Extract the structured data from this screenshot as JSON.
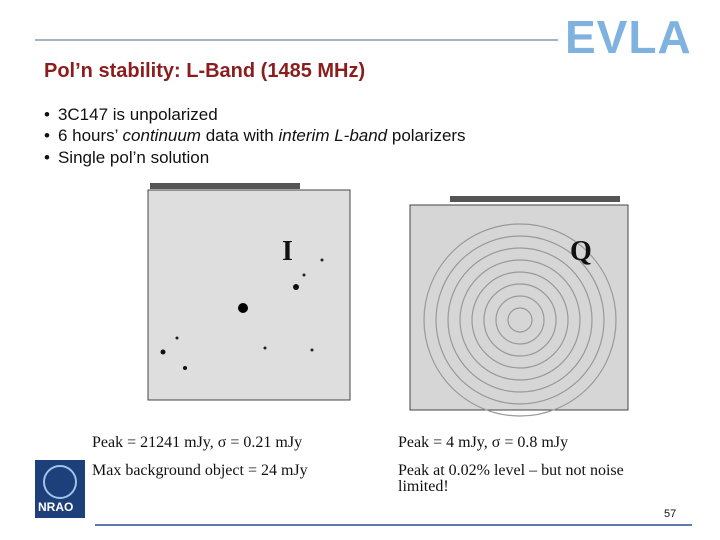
{
  "header": {
    "title": "Pol’n stability: L-Band (1485 MHz)",
    "logo": "EVLA"
  },
  "bullets": [
    [
      "3C147 is unpolarized"
    ],
    [
      "6 hours’ ",
      "continuum",
      " data with ",
      "interim L-band",
      " polarizers"
    ],
    [
      "Single pol’n solution"
    ]
  ],
  "panels": [
    {
      "label": "I",
      "caption": [
        "Peak = 21241 mJy, σ = 0.21 mJy",
        "Max background object = 24 mJy"
      ]
    },
    {
      "label": "Q",
      "caption": [
        "Peak = 4 mJy, σ = 0.8 mJy",
        "Peak at 0.02% level – but not noise limited!"
      ]
    }
  ],
  "footer": {
    "logo": "NRAO",
    "page": "57"
  }
}
